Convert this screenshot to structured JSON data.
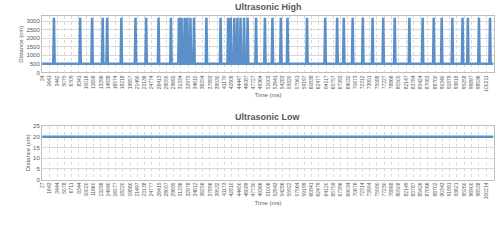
{
  "chart_data": [
    {
      "type": "line",
      "title": "Ultrasonic High",
      "x_label": "Time (ms)",
      "y_label": "Distance (cm)",
      "color": "#5b8fc8",
      "grid": true,
      "xlim": [
        0,
        102000
      ],
      "ylim": [
        0,
        3300
      ],
      "yticks": [
        0,
        500,
        1000,
        1500,
        2000,
        2500,
        3000
      ],
      "xticks": [
        24,
        1641,
        3442,
        5075,
        6709,
        8341,
        10018,
        11658,
        13296,
        14938,
        16574,
        18218,
        19857,
        21495,
        23136,
        24774,
        26413,
        28055,
        29692,
        31334,
        32975,
        34610,
        36254,
        37893,
        39530,
        41170,
        42808,
        44447,
        46087,
        47727,
        49364,
        51003,
        52641,
        54283,
        55920,
        57561,
        59197,
        60838,
        62477,
        64117,
        65757,
        67393,
        69032,
        70673,
        72312,
        73951,
        75588,
        77227,
        78866,
        80505,
        82147,
        83784,
        85424,
        87063,
        88700,
        90340,
        91979,
        93618,
        95258,
        96897,
        98536,
        100211
      ],
      "x": [
        24,
        2550,
        2700,
        2850,
        8450,
        8600,
        8750,
        11150,
        11300,
        11450,
        13550,
        13700,
        13850,
        14550,
        14700,
        14850,
        17750,
        17900,
        18050,
        20950,
        21100,
        21250,
        23350,
        23500,
        23650,
        26150,
        26300,
        26450,
        28950,
        29100,
        29250,
        30750,
        30900,
        31050,
        31350,
        31500,
        31650,
        32050,
        32200,
        32350,
        32650,
        32800,
        32950,
        33350,
        33500,
        33650,
        34150,
        34300,
        34450,
        36950,
        37100,
        37250,
        40150,
        40300,
        40450,
        41850,
        42000,
        42150,
        42450,
        42600,
        42750,
        43250,
        43400,
        43550,
        43950,
        44100,
        44250,
        44650,
        44800,
        44950,
        45450,
        45600,
        45750,
        46250,
        46400,
        46550,
        48150,
        48300,
        48450,
        50150,
        50300,
        50450,
        51850,
        52000,
        52150,
        53750,
        53900,
        54050,
        55250,
        55400,
        55550,
        59650,
        59800,
        59950,
        63750,
        63900,
        64050,
        66450,
        66600,
        66750,
        67950,
        68100,
        68250,
        69950,
        70100,
        70250,
        72250,
        72400,
        72550,
        74450,
        74600,
        74750,
        76850,
        77000,
        77150,
        79450,
        79600,
        79750,
        82750,
        82900,
        83050,
        85750,
        85900,
        86050,
        88250,
        88400,
        88550,
        90050,
        90200,
        90350,
        92450,
        92600,
        92750,
        94750,
        94900,
        95050,
        95950,
        96100,
        96250,
        98450,
        98600,
        98750,
        100950,
        101100,
        101250,
        101800
      ],
      "values": [
        500,
        500,
        3200,
        500,
        500,
        3200,
        500,
        500,
        3200,
        500,
        500,
        3200,
        500,
        500,
        3200,
        500,
        500,
        3200,
        500,
        500,
        3200,
        500,
        500,
        3200,
        500,
        500,
        3200,
        500,
        500,
        3200,
        500,
        500,
        3200,
        500,
        500,
        3200,
        500,
        500,
        3200,
        500,
        500,
        3200,
        500,
        500,
        3200,
        500,
        500,
        3200,
        500,
        500,
        3200,
        500,
        500,
        3200,
        500,
        500,
        3200,
        500,
        500,
        3200,
        500,
        500,
        3200,
        500,
        500,
        3200,
        500,
        500,
        3200,
        500,
        500,
        3200,
        500,
        500,
        3200,
        500,
        500,
        3200,
        500,
        500,
        3200,
        500,
        500,
        3200,
        500,
        500,
        3200,
        500,
        500,
        3200,
        500,
        500,
        3200,
        500,
        500,
        3200,
        500,
        500,
        3200,
        500,
        500,
        3200,
        500,
        500,
        3200,
        500,
        500,
        3200,
        500,
        500,
        3200,
        500,
        500,
        3200,
        500,
        500,
        3200,
        500,
        500,
        3200,
        500,
        500,
        3200,
        500,
        500,
        3200,
        500,
        500,
        3200,
        500,
        500,
        3200,
        500,
        500,
        3200,
        500,
        500,
        3200,
        500,
        500,
        3200,
        500,
        500,
        3200,
        500,
        500
      ]
    },
    {
      "type": "line",
      "title": "Ultrasonic Low",
      "x_label": "Time (ms)",
      "y_label": "Distance (cm)",
      "color": "#5b8fc8",
      "grid": true,
      "xlim": [
        0,
        102000
      ],
      "ylim": [
        0,
        25
      ],
      "yticks": [
        0,
        5,
        10,
        15,
        20,
        25
      ],
      "xticks": [
        27,
        1643,
        3444,
        5078,
        6711,
        8344,
        10020,
        11660,
        13298,
        14940,
        16577,
        18220,
        19860,
        21497,
        23138,
        24777,
        26415,
        28057,
        29695,
        31336,
        32978,
        34612,
        36256,
        37896,
        39532,
        41173,
        42810,
        44450,
        46089,
        47730,
        49366,
        51006,
        52643,
        54286,
        55922,
        57564,
        59199,
        60841,
        62479,
        64120,
        65759,
        67396,
        69034,
        70676,
        72314,
        73954,
        75590,
        77230,
        78868,
        80508,
        82149,
        83787,
        85426,
        87066,
        88702,
        90343,
        91981,
        93621,
        95260,
        96900,
        98538,
        100214
      ],
      "x": [
        27,
        101800
      ],
      "values": [
        20,
        20
      ]
    }
  ]
}
